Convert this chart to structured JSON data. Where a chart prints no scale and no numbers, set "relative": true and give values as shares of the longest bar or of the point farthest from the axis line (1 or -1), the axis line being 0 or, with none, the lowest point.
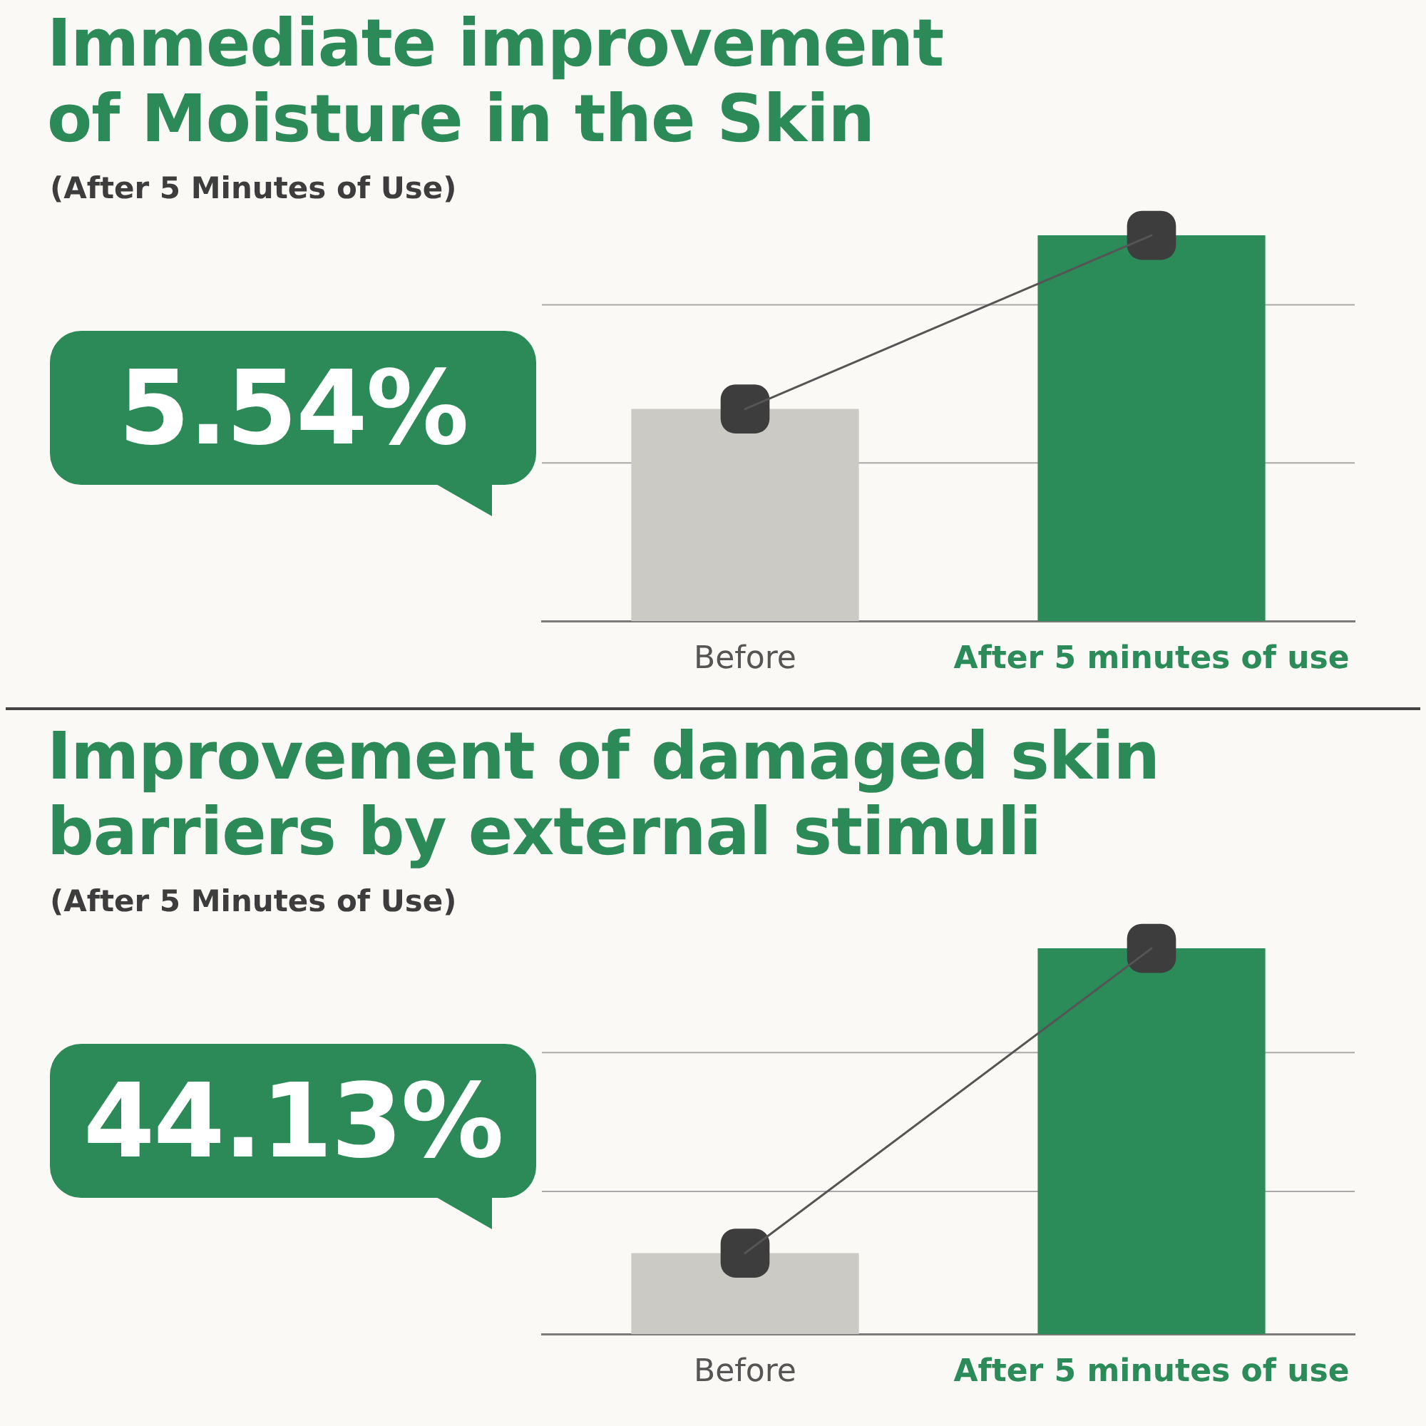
{
  "chart_data": [
    {
      "type": "bar",
      "title": "Immediate improvement of Moisture in the Skin",
      "subtitle": "(After 5 Minutes of Use)",
      "annotations": [
        "5.54%"
      ],
      "categories": [
        "Before",
        "After 5 minutes of use"
      ],
      "relative": true,
      "marker": "square",
      "ref_lines": [
        {
          "axis": "y",
          "value": 0.41,
          "color": "#a9a9a9"
        },
        {
          "axis": "y",
          "value": 0.82,
          "color": "#a9a9a9"
        }
      ],
      "series": [
        {
          "colors": [
            "#cbcac5",
            "#2b8c5a"
          ],
          "values": [
            0.55,
            1
          ]
        },
        {
          "type": "line",
          "color": "#555555",
          "colors": [
            "#3d3d3d",
            "#3d3d3d"
          ],
          "values": [
            0.55,
            1
          ]
        }
      ]
    },
    {
      "type": "bar",
      "title": "Improvement of damaged skin barriers by external stimuli",
      "subtitle": "(After 5 Minutes of Use)",
      "annotations": [
        "44.13%"
      ],
      "categories": [
        "Before",
        "After 5 minutes of use"
      ],
      "relative": true,
      "marker": "square",
      "ref_lines": [
        {
          "axis": "y",
          "value": 0.37,
          "color": "#a9a9a9"
        },
        {
          "axis": "y",
          "value": 0.73,
          "color": "#a9a9a9"
        }
      ],
      "series": [
        {
          "colors": [
            "#cbcac5",
            "#2b8c5a"
          ],
          "values": [
            0.21,
            1
          ]
        },
        {
          "type": "line",
          "color": "#555555",
          "colors": [
            "#3d3d3d",
            "#3d3d3d"
          ],
          "values": [
            0.21,
            1
          ]
        }
      ]
    }
  ]
}
